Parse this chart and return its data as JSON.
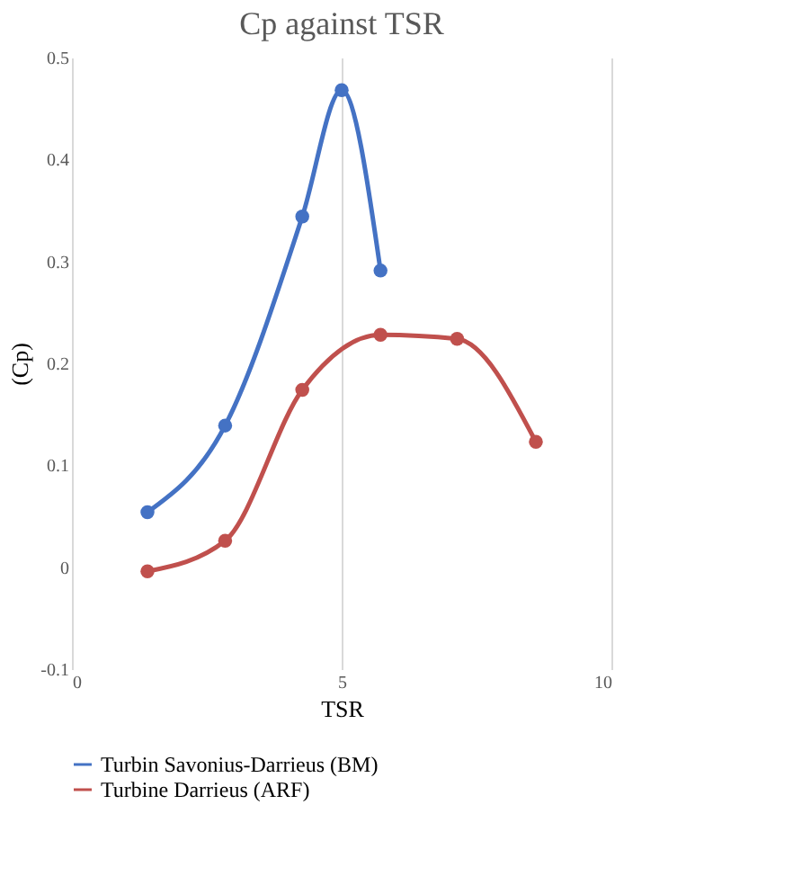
{
  "chart_data": {
    "type": "line",
    "title": "Cp against TSR",
    "xlabel": "TSR",
    "ylabel": "(Cp)",
    "xlim": [
      0,
      10
    ],
    "xticks": [
      0,
      5,
      10
    ],
    "ylim": [
      -0.1,
      0.5
    ],
    "yticks": [
      -0.1,
      0,
      0.1,
      0.2,
      0.3,
      0.4,
      0.5
    ],
    "grid": "x",
    "legend": "bottom",
    "marker": "circle",
    "line_style": "solid",
    "series": [
      {
        "name": "Turbin Savonius-Darrieus (BM)",
        "color": "#4472c4",
        "x": [
          1.4,
          2.84,
          4.27,
          5.0,
          5.72
        ],
        "values": [
          0.054,
          0.139,
          0.344,
          0.468,
          0.291
        ]
      },
      {
        "name": "Turbine Darrieus (ARF)",
        "color": "#c0504d",
        "x": [
          1.4,
          2.84,
          4.27,
          5.72,
          7.14,
          8.6
        ],
        "values": [
          -0.004,
          0.026,
          0.174,
          0.228,
          0.224,
          0.123
        ]
      }
    ]
  }
}
